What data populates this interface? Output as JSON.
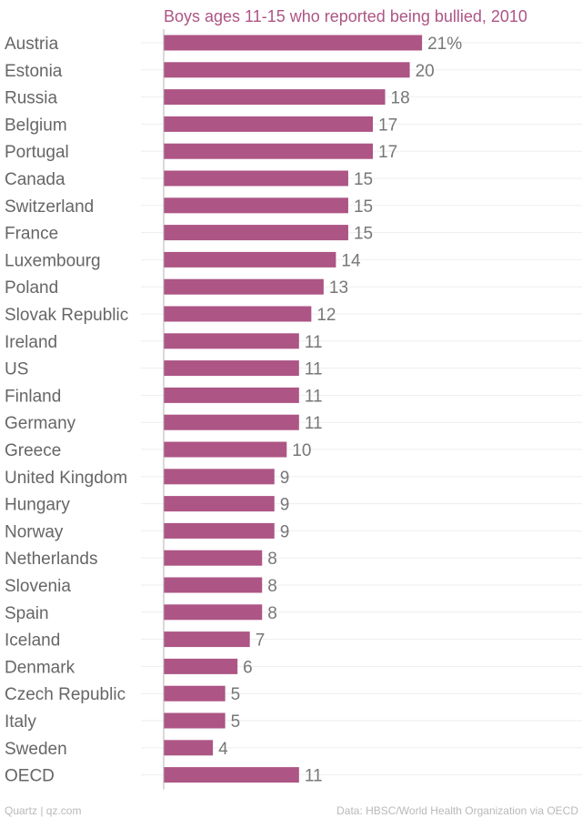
{
  "chart_data": {
    "type": "bar",
    "orientation": "horizontal",
    "title": "Boys ages 11-15 who reported being bullied, 2010",
    "categories": [
      "Austria",
      "Estonia",
      "Russia",
      "Belgium",
      "Portugal",
      "Canada",
      "Switzerland",
      "France",
      "Luxembourg",
      "Poland",
      "Slovak Republic",
      "Ireland",
      "US",
      "Finland",
      "Germany",
      "Greece",
      "United Kingdom",
      "Hungary",
      "Norway",
      "Netherlands",
      "Slovenia",
      "Spain",
      "Iceland",
      "Denmark",
      "Czech Republic",
      "Italy",
      "Sweden",
      "OECD"
    ],
    "values": [
      21,
      20,
      18,
      17,
      17,
      15,
      15,
      15,
      14,
      13,
      12,
      11,
      11,
      11,
      11,
      10,
      9,
      9,
      9,
      8,
      8,
      8,
      7,
      6,
      5,
      5,
      4,
      11
    ],
    "value_labels": [
      "21%",
      "20",
      "18",
      "17",
      "17",
      "15",
      "15",
      "15",
      "14",
      "13",
      "12",
      "11",
      "11",
      "11",
      "11",
      "10",
      "9",
      "9",
      "9",
      "8",
      "8",
      "8",
      "7",
      "6",
      "5",
      "5",
      "4",
      "11"
    ],
    "xlim": [
      0,
      34
    ],
    "unit": "%",
    "bar_color": "#ad5585",
    "xlabel": "",
    "ylabel": ""
  },
  "footer": {
    "left": "Quartz | qz.com",
    "right": "Data: HBSC/World Health Organization via OECD"
  }
}
